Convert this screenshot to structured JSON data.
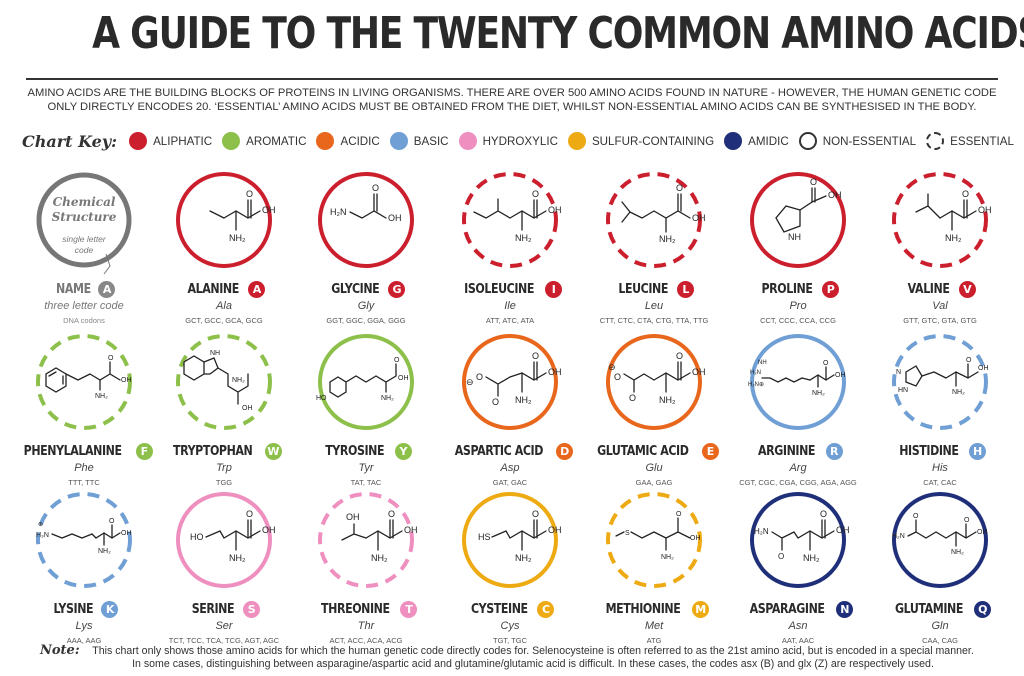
{
  "title": "A GUIDE TO THE TWENTY COMMON AMINO ACIDS",
  "intro_line1": "AMINO ACIDS ARE THE BUILDING BLOCKS OF PROTEINS IN LIVING ORGANISMS. THERE ARE OVER 500 AMINO ACIDS FOUND IN NATURE - HOWEVER, THE HUMAN GENETIC CODE",
  "intro_line2": "ONLY DIRECTLY ENCODES 20. ‘ESSENTIAL’ AMINO ACIDS MUST BE OBTAINED FROM THE DIET, WHILST NON-ESSENTIAL AMINO ACIDS CAN BE SYNTHESISED IN THE BODY.",
  "key": {
    "title": "Chart Key:",
    "items": [
      {
        "label": "ALIPHATIC",
        "color": "#cc1f2e"
      },
      {
        "label": "AROMATIC",
        "color": "#8dc04a"
      },
      {
        "label": "ACIDIC",
        "color": "#e8671c"
      },
      {
        "label": "BASIC",
        "color": "#6f9fd4"
      },
      {
        "label": "HYDROXYLIC",
        "color": "#ef8fbf"
      },
      {
        "label": "SULFUR-CONTAINING",
        "color": "#eeaa12"
      },
      {
        "label": "AMIDIC",
        "color": "#1f2f7a"
      },
      {
        "label": "NON-ESSENTIAL",
        "style": "solid"
      },
      {
        "label": "ESSENTIAL",
        "style": "dashed"
      }
    ]
  },
  "legend": {
    "circle_title_1": "Chemical",
    "circle_title_2": "Structure",
    "circle_sub_1": "single letter",
    "circle_sub_2": "code",
    "name": "NAME",
    "letter": "A",
    "three": "three letter code",
    "codons": "DNA codons"
  },
  "acids": [
    {
      "name": "ALANINE",
      "letter": "A",
      "three": "Ala",
      "codons": "GCT, GCC, GCA, GCG",
      "class": "aliphatic",
      "essential": false
    },
    {
      "name": "GLYCINE",
      "letter": "G",
      "three": "Gly",
      "codons": "GGT, GGC, GGA, GGG",
      "class": "aliphatic",
      "essential": false
    },
    {
      "name": "ISOLEUCINE",
      "letter": "I",
      "three": "Ile",
      "codons": "ATT, ATC, ATA",
      "class": "aliphatic",
      "essential": true
    },
    {
      "name": "LEUCINE",
      "letter": "L",
      "three": "Leu",
      "codons": "CTT, CTC, CTA, CTG, TTA, TTG",
      "class": "aliphatic",
      "essential": true
    },
    {
      "name": "PROLINE",
      "letter": "P",
      "three": "Pro",
      "codons": "CCT, CCC, CCA, CCG",
      "class": "aliphatic",
      "essential": false
    },
    {
      "name": "VALINE",
      "letter": "V",
      "three": "Val",
      "codons": "GTT, GTC, GTA, GTG",
      "class": "aliphatic",
      "essential": true
    },
    {
      "name": "PHENYLALANINE",
      "letter": "F",
      "three": "Phe",
      "codons": "TTT, TTC",
      "class": "aromatic",
      "essential": true
    },
    {
      "name": "TRYPTOPHAN",
      "letter": "W",
      "three": "Trp",
      "codons": "TGG",
      "class": "aromatic",
      "essential": true
    },
    {
      "name": "TYROSINE",
      "letter": "Y",
      "three": "Tyr",
      "codons": "TAT, TAC",
      "class": "aromatic",
      "essential": false
    },
    {
      "name": "ASPARTIC ACID",
      "letter": "D",
      "three": "Asp",
      "codons": "GAT, GAC",
      "class": "acidic",
      "essential": false
    },
    {
      "name": "GLUTAMIC ACID",
      "letter": "E",
      "three": "Glu",
      "codons": "GAA, GAG",
      "class": "acidic",
      "essential": false
    },
    {
      "name": "ARGININE",
      "letter": "R",
      "three": "Arg",
      "codons": "CGT, CGC, CGA, CGG, AGA, AGG",
      "class": "basic",
      "essential": false
    },
    {
      "name": "HISTIDINE",
      "letter": "H",
      "three": "His",
      "codons": "CAT, CAC",
      "class": "basic",
      "essential": true
    },
    {
      "name": "LYSINE",
      "letter": "K",
      "three": "Lys",
      "codons": "AAA, AAG",
      "class": "basic",
      "essential": true
    },
    {
      "name": "SERINE",
      "letter": "S",
      "three": "Ser",
      "codons": "TCT, TCC, TCA, TCG, AGT, AGC",
      "class": "hydroxylic",
      "essential": false
    },
    {
      "name": "THREONINE",
      "letter": "T",
      "three": "Thr",
      "codons": "ACT, ACC, ACA, ACG",
      "class": "hydroxylic",
      "essential": true
    },
    {
      "name": "CYSTEINE",
      "letter": "C",
      "three": "Cys",
      "codons": "TGT, TGC",
      "class": "sulfur",
      "essential": false
    },
    {
      "name": "METHIONINE",
      "letter": "M",
      "three": "Met",
      "codons": "ATG",
      "class": "sulfur",
      "essential": true
    },
    {
      "name": "ASPARAGINE",
      "letter": "N",
      "three": "Asn",
      "codons": "AAT, AAC",
      "class": "amidic",
      "essential": false
    },
    {
      "name": "GLUTAMINE",
      "letter": "Q",
      "three": "Gln",
      "codons": "CAA, CAG",
      "class": "amidic",
      "essential": false
    }
  ],
  "class_colors": {
    "aliphatic": "#cc1f2e",
    "aromatic": "#8dc04a",
    "acidic": "#e8671c",
    "basic": "#6f9fd4",
    "hydroxylic": "#ef8fbf",
    "sulfur": "#eeaa12",
    "amidic": "#1f2f7a"
  },
  "note_label": "Note:",
  "note_line1": "This chart only shows those amino acids for which the human genetic code directly codes for. Selenocysteine is often referred to as the 21st amino acid, but is encoded in a special manner.",
  "note_line2": "In some cases, distinguishing between asparagine/aspartic acid and glutamine/glutamic acid is difficult. In these cases, the codes asx (B) and glx (Z) are respectively used."
}
